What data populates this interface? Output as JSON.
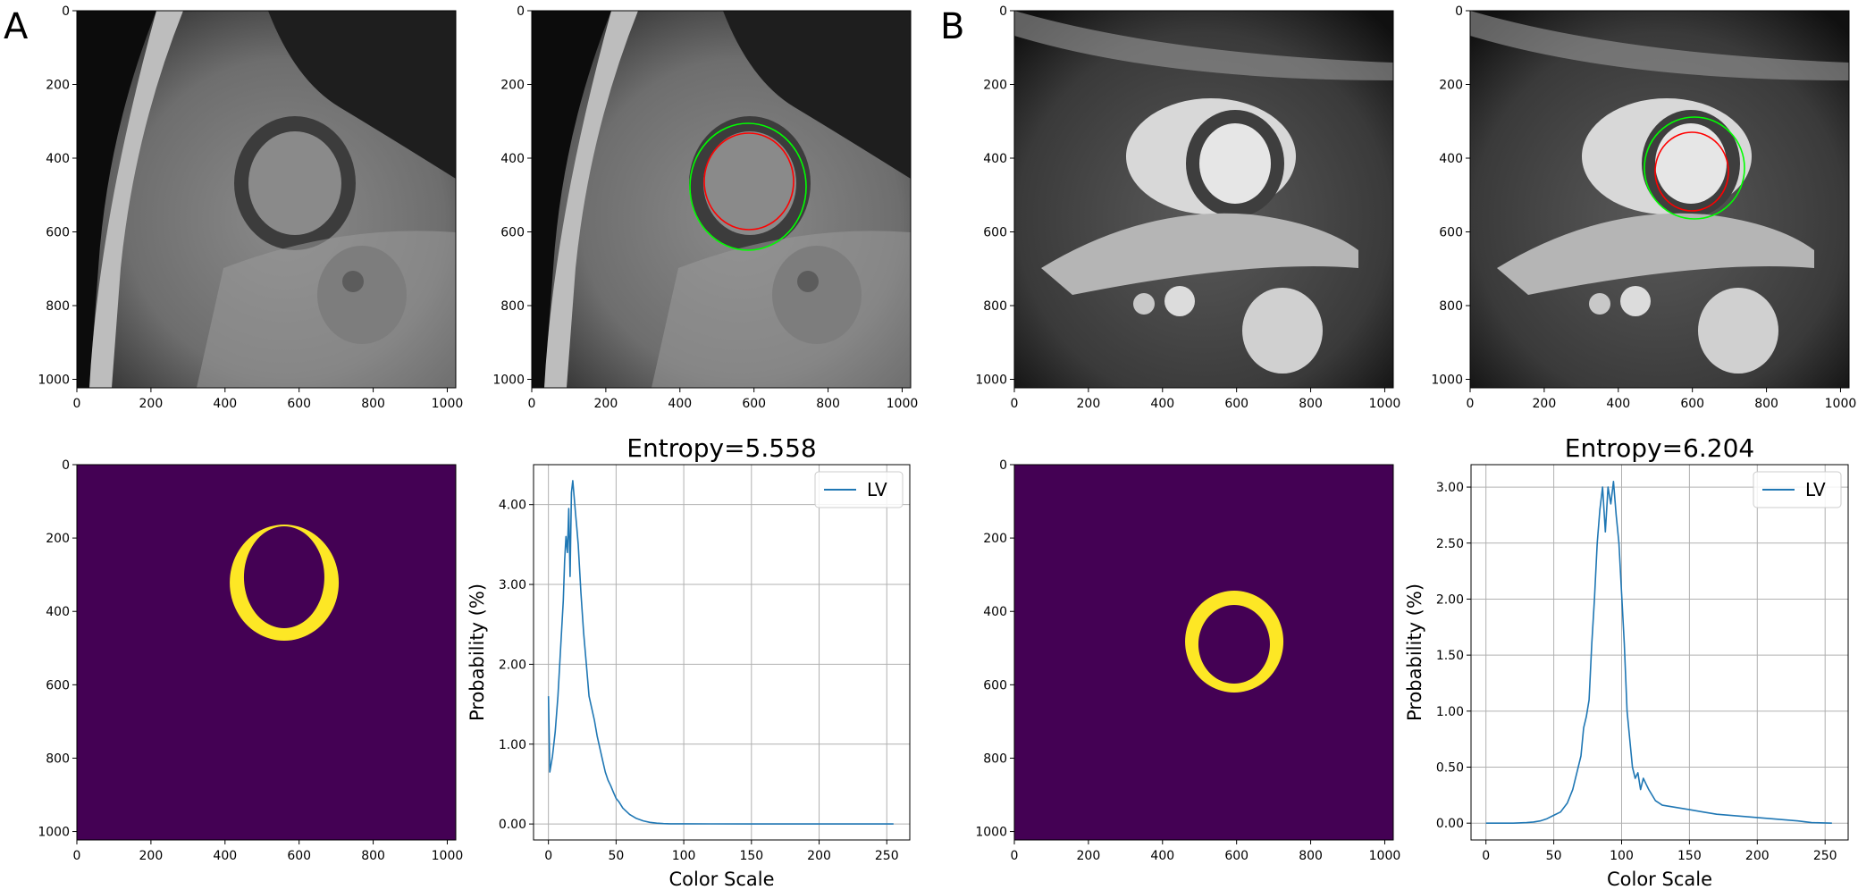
{
  "figure": {
    "panel_labels": [
      "A",
      "B"
    ],
    "image_axis_ticks": [
      0,
      200,
      400,
      600,
      800,
      1000
    ],
    "image_axis_range": [
      0,
      1023
    ],
    "colors": {
      "mask_background": "#440154",
      "mask_foreground": "#fde725",
      "endocardium_contour": "#ff0000",
      "epicardium_contour": "#00ff00",
      "histogram_line": "#1f77b4"
    }
  },
  "chart_data": [
    {
      "type": "line",
      "panel": "A",
      "title": "Entropy=5.558",
      "xlabel": "Color Scale",
      "ylabel": "Probability (%)",
      "xlim": [
        -11,
        267
      ],
      "ylim": [
        -0.2,
        4.5
      ],
      "xticks": [
        0,
        50,
        100,
        150,
        200,
        250
      ],
      "yticks": [
        "0.00",
        "1.00",
        "2.00",
        "3.00",
        "4.00"
      ],
      "ytick_values": [
        0,
        1,
        2,
        3,
        4
      ],
      "grid": true,
      "legend": "upper-right",
      "series": [
        {
          "name": "LV",
          "x": [
            0,
            1,
            2,
            3,
            5,
            7,
            9,
            11,
            12,
            13,
            14,
            15,
            16,
            17,
            18,
            19,
            20,
            21,
            22,
            23,
            24,
            26,
            28,
            30,
            32,
            34,
            36,
            38,
            40,
            42,
            44,
            46,
            48,
            50,
            52,
            55,
            60,
            65,
            70,
            75,
            80,
            85,
            90,
            100,
            120,
            150,
            200,
            255
          ],
          "y": [
            1.6,
            0.65,
            0.75,
            0.85,
            1.15,
            1.6,
            2.2,
            2.8,
            3.3,
            3.6,
            3.4,
            3.95,
            3.1,
            4.15,
            4.3,
            4.1,
            3.9,
            3.7,
            3.5,
            3.2,
            2.9,
            2.4,
            2.0,
            1.6,
            1.45,
            1.3,
            1.1,
            0.95,
            0.8,
            0.65,
            0.55,
            0.48,
            0.4,
            0.32,
            0.28,
            0.2,
            0.12,
            0.07,
            0.04,
            0.02,
            0.01,
            0.005,
            0.003,
            0.002,
            0.001,
            0.0,
            0.0,
            0.0
          ]
        }
      ]
    },
    {
      "type": "line",
      "panel": "B",
      "title": "Entropy=6.204",
      "xlabel": "Color Scale",
      "ylabel": "Probability (%)",
      "xlim": [
        -11,
        267
      ],
      "ylim": [
        -0.15,
        3.2
      ],
      "xticks": [
        0,
        50,
        100,
        150,
        200,
        250
      ],
      "yticks": [
        "0.00",
        "0.50",
        "1.00",
        "1.50",
        "2.00",
        "2.50",
        "3.00"
      ],
      "ytick_values": [
        0,
        0.5,
        1,
        1.5,
        2,
        2.5,
        3
      ],
      "grid": true,
      "legend": "upper-right",
      "series": [
        {
          "name": "LV",
          "x": [
            0,
            10,
            20,
            30,
            35,
            40,
            45,
            50,
            55,
            60,
            64,
            67,
            70,
            72,
            74,
            76,
            78,
            80,
            82,
            84,
            86,
            88,
            90,
            92,
            94,
            96,
            98,
            100,
            102,
            104,
            106,
            108,
            110,
            112,
            114,
            116,
            118,
            120,
            125,
            130,
            140,
            150,
            160,
            170,
            180,
            190,
            200,
            210,
            220,
            230,
            240,
            255
          ],
          "y": [
            0.0,
            0.0,
            0.0,
            0.005,
            0.01,
            0.02,
            0.04,
            0.07,
            0.1,
            0.18,
            0.3,
            0.45,
            0.6,
            0.85,
            0.95,
            1.1,
            1.6,
            2.0,
            2.5,
            2.8,
            3.0,
            2.6,
            3.0,
            2.85,
            3.05,
            2.75,
            2.5,
            2.05,
            1.6,
            1.0,
            0.75,
            0.5,
            0.4,
            0.45,
            0.3,
            0.4,
            0.35,
            0.3,
            0.2,
            0.16,
            0.14,
            0.12,
            0.1,
            0.08,
            0.07,
            0.06,
            0.05,
            0.04,
            0.03,
            0.02,
            0.005,
            0.0
          ]
        }
      ]
    }
  ],
  "image_panels": [
    {
      "panel": "A",
      "kind": "mri",
      "contours": false
    },
    {
      "panel": "A",
      "kind": "mri",
      "contours": true
    },
    {
      "panel": "A",
      "kind": "mask"
    },
    {
      "panel": "B",
      "kind": "mri",
      "contours": false
    },
    {
      "panel": "B",
      "kind": "mri",
      "contours": true
    },
    {
      "panel": "B",
      "kind": "mask"
    }
  ]
}
